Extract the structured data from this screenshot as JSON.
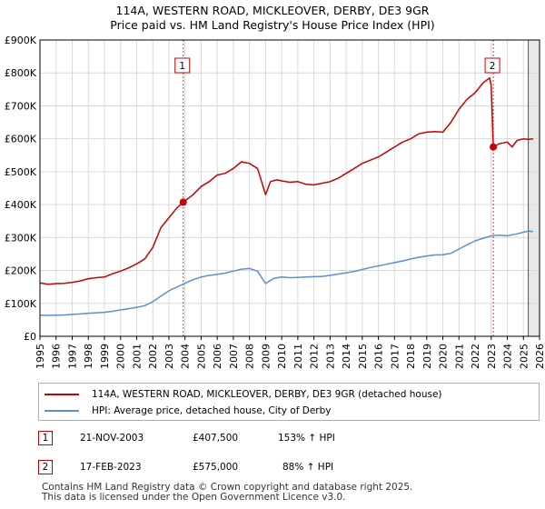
{
  "title_line1": "114A, WESTERN ROAD, MICKLEOVER, DERBY, DE3 9GR",
  "title_line2": "Price paid vs. HM Land Registry's House Price Index (HPI)",
  "chart_data": {
    "type": "line",
    "xlim": [
      1995,
      2026
    ],
    "ylim": [
      0,
      900000
    ],
    "y_ticks": [
      {
        "value": 0,
        "label": "£0"
      },
      {
        "value": 100000,
        "label": "£100K"
      },
      {
        "value": 200000,
        "label": "£200K"
      },
      {
        "value": 300000,
        "label": "£300K"
      },
      {
        "value": 400000,
        "label": "£400K"
      },
      {
        "value": 500000,
        "label": "£500K"
      },
      {
        "value": 600000,
        "label": "£600K"
      },
      {
        "value": 700000,
        "label": "£700K"
      },
      {
        "value": 800000,
        "label": "£800K"
      },
      {
        "value": 900000,
        "label": "£900K"
      }
    ],
    "x_ticks": [
      "1995",
      "1996",
      "1997",
      "1998",
      "1999",
      "2000",
      "2001",
      "2002",
      "2003",
      "2004",
      "2005",
      "2006",
      "2007",
      "2008",
      "2009",
      "2010",
      "2011",
      "2012",
      "2013",
      "2014",
      "2015",
      "2016",
      "2017",
      "2018",
      "2019",
      "2020",
      "2021",
      "2022",
      "2023",
      "2024",
      "2025",
      "2026"
    ],
    "grid": true,
    "shaded_region_start": 2025.3,
    "series": [
      {
        "name": "114A, WESTERN ROAD, MICKLEOVER, DERBY, DE3 9GR (detached house)",
        "color": "#cc0000",
        "x": [
          1995.0,
          1995.5,
          1996.0,
          1996.5,
          1997.0,
          1997.5,
          1998.0,
          1998.5,
          1999.0,
          1999.5,
          2000.0,
          2000.5,
          2001.0,
          2001.5,
          2002.0,
          2002.5,
          2003.0,
          2003.5,
          2003.9,
          2004.5,
          2005.0,
          2005.5,
          2006.0,
          2006.5,
          2007.0,
          2007.5,
          2008.0,
          2008.5,
          2009.0,
          2009.3,
          2009.7,
          2010.0,
          2010.5,
          2011.0,
          2011.5,
          2012.0,
          2012.5,
          2013.0,
          2013.5,
          2014.0,
          2014.5,
          2015.0,
          2015.5,
          2016.0,
          2016.5,
          2017.0,
          2017.5,
          2018.0,
          2018.5,
          2019.0,
          2019.5,
          2020.0,
          2020.5,
          2021.0,
          2021.5,
          2022.0,
          2022.5,
          2022.9,
          2023.0,
          2023.13,
          2023.5,
          2024.0,
          2024.3,
          2024.6,
          2025.0,
          2025.3,
          2025.6
        ],
        "values": [
          162000,
          158000,
          160000,
          161000,
          164000,
          168000,
          175000,
          178000,
          180000,
          190000,
          198000,
          208000,
          220000,
          235000,
          270000,
          330000,
          360000,
          390000,
          407500,
          430000,
          455000,
          470000,
          490000,
          495000,
          510000,
          530000,
          525000,
          510000,
          430000,
          470000,
          475000,
          472000,
          468000,
          470000,
          462000,
          460000,
          465000,
          470000,
          480000,
          495000,
          510000,
          525000,
          535000,
          545000,
          560000,
          575000,
          590000,
          600000,
          615000,
          620000,
          622000,
          620000,
          650000,
          690000,
          720000,
          740000,
          770000,
          785000,
          760000,
          575000,
          585000,
          590000,
          575000,
          595000,
          600000,
          598000,
          600000
        ]
      },
      {
        "name": "HPI: Average price, detached house, City of Derby",
        "color": "#5b8ed6",
        "x": [
          1995.0,
          1995.5,
          1996.0,
          1996.5,
          1997.0,
          1997.5,
          1998.0,
          1998.5,
          1999.0,
          1999.5,
          2000.0,
          2000.5,
          2001.0,
          2001.5,
          2002.0,
          2002.5,
          2003.0,
          2003.5,
          2004.0,
          2004.5,
          2005.0,
          2005.5,
          2006.0,
          2006.5,
          2007.0,
          2007.5,
          2008.0,
          2008.5,
          2009.0,
          2009.5,
          2010.0,
          2010.5,
          2011.0,
          2011.5,
          2012.0,
          2012.5,
          2013.0,
          2013.5,
          2014.0,
          2014.5,
          2015.0,
          2015.5,
          2016.0,
          2016.5,
          2017.0,
          2017.5,
          2018.0,
          2018.5,
          2019.0,
          2019.5,
          2020.0,
          2020.5,
          2021.0,
          2021.5,
          2022.0,
          2022.5,
          2023.0,
          2023.5,
          2024.0,
          2024.5,
          2025.0,
          2025.3,
          2025.6
        ],
        "values": [
          64000,
          63500,
          64000,
          65000,
          66500,
          68000,
          70000,
          71500,
          73000,
          76000,
          80000,
          84000,
          88000,
          93000,
          105000,
          122000,
          138000,
          150000,
          161000,
          172000,
          180000,
          185000,
          188000,
          192000,
          198000,
          204000,
          206000,
          198000,
          160000,
          176000,
          180000,
          178000,
          179000,
          180000,
          181000,
          182000,
          185000,
          189000,
          193000,
          197000,
          203000,
          209000,
          214000,
          219000,
          224000,
          229000,
          235000,
          240000,
          244000,
          247000,
          248000,
          252000,
          265000,
          278000,
          290000,
          298000,
          305000,
          307000,
          305000,
          310000,
          316000,
          320000,
          318000
        ]
      }
    ],
    "markers": [
      {
        "label": "1",
        "x": 2003.89,
        "value": 407500
      },
      {
        "label": "2",
        "x": 2023.13,
        "value": 575000
      }
    ]
  },
  "legend": {
    "property_label": "114A, WESTERN ROAD, MICKLEOVER, DERBY, DE3 9GR (detached house)",
    "hpi_label": "HPI: Average price, detached house, City of Derby"
  },
  "transactions": [
    {
      "num": "1",
      "date": "21-NOV-2003",
      "price": "£407,500",
      "hpi": "153% ↑ HPI"
    },
    {
      "num": "2",
      "date": "17-FEB-2023",
      "price": "£575,000",
      "hpi": "88% ↑ HPI"
    }
  ],
  "footer_line1": "Contains HM Land Registry data © Crown copyright and database right 2025.",
  "footer_line2": "This data is licensed under the Open Government Licence v3.0."
}
